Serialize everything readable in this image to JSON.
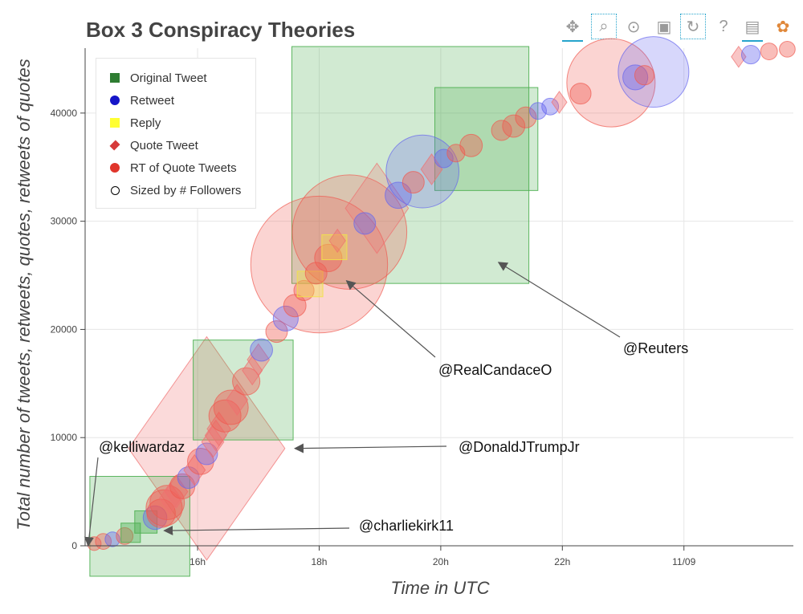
{
  "toolbar": {
    "tools": [
      {
        "name": "pan-tool",
        "glyph": "✥"
      },
      {
        "name": "box-zoom-tool",
        "glyph": "⌕"
      },
      {
        "name": "wheel-zoom-tool",
        "glyph": "⊙"
      },
      {
        "name": "save-tool",
        "glyph": "▣"
      },
      {
        "name": "reset-tool",
        "glyph": "↻"
      },
      {
        "name": "help-tool",
        "glyph": "?"
      },
      {
        "name": "hover-tool",
        "glyph": "▤"
      },
      {
        "name": "bokeh-logo",
        "glyph": "✿"
      }
    ]
  },
  "chart_data": {
    "type": "scatter",
    "title": "Box 3 Conspiracy Theories",
    "xlabel": "Time in UTC",
    "ylabel": "Total number of tweets, retweets, quotes, retweets of quotes",
    "xlim": [
      14.15,
      25.8
    ],
    "ylim": [
      0,
      46000
    ],
    "x_ticks": [
      16,
      18,
      20,
      22,
      24
    ],
    "x_tick_labels": [
      "16h",
      "18h",
      "20h",
      "22h",
      "11/09"
    ],
    "y_ticks": [
      0,
      10000,
      20000,
      30000,
      40000
    ],
    "y_tick_labels": [
      "0",
      "10000",
      "20000",
      "30000",
      "40000"
    ],
    "grid": true,
    "legend": [
      {
        "label": "Original Tweet",
        "marker": "square",
        "color": "#2e7d32"
      },
      {
        "label": "Retweet",
        "marker": "circle",
        "color": "#1515c8"
      },
      {
        "label": "Reply",
        "marker": "square",
        "color": "#ffff33"
      },
      {
        "label": "Quote Tweet",
        "marker": "diamond",
        "color": "#d63a3a"
      },
      {
        "label": "RT of Quote Tweets",
        "marker": "circle",
        "color": "#e0352b"
      },
      {
        "label": "Sized by # Followers",
        "marker": "circle-outline",
        "color": "#000000"
      }
    ],
    "series_colors": {
      "original": "#4caf50",
      "retweet": "#6666ee",
      "reply": "#f2e24a",
      "quote": "#ef6f6f",
      "rt_quote": "#ef5a50"
    },
    "large_points": [
      {
        "kind": "original",
        "x": 19.5,
        "y": 35200,
        "size": 18000,
        "label": "@Reuters"
      },
      {
        "kind": "rt_quote",
        "x": 18.0,
        "y": 26000,
        "size": 6000,
        "label": "@RealCandaceO"
      },
      {
        "kind": "quote",
        "x": 16.15,
        "y": 9000,
        "size": 16000,
        "label": "@DonaldJTrumpJr"
      },
      {
        "kind": "original",
        "x": 15.05,
        "y": 1800,
        "size": 3200,
        "label": "@charliekirk11"
      },
      {
        "kind": "rt_quote",
        "x": 18.5,
        "y": 29000,
        "size": 4200
      },
      {
        "kind": "original",
        "x": 16.75,
        "y": 14400,
        "size": 3200
      },
      {
        "kind": "original",
        "x": 20.75,
        "y": 37600,
        "size": 3400
      },
      {
        "kind": "rt_quote",
        "x": 22.8,
        "y": 42800,
        "size": 2500
      },
      {
        "kind": "retweet",
        "x": 23.5,
        "y": 43800,
        "size": 1600
      },
      {
        "kind": "quote",
        "x": 18.95,
        "y": 31200,
        "size": 2600
      },
      {
        "kind": "retweet",
        "x": 19.7,
        "y": 34600,
        "size": 1700
      }
    ],
    "small_points": [
      [
        14.3,
        200,
        "rt_quote",
        60
      ],
      [
        14.45,
        400,
        "rt_quote",
        80
      ],
      [
        14.6,
        600,
        "retweet",
        70
      ],
      [
        14.8,
        900,
        "rt_quote",
        90
      ],
      [
        14.9,
        1200,
        "original",
        120
      ],
      [
        15.15,
        2200,
        "original",
        160
      ],
      [
        15.3,
        2600,
        "retweet",
        180
      ],
      [
        15.4,
        3000,
        "rt_quote",
        260
      ],
      [
        15.45,
        3500,
        "rt_quote",
        420
      ],
      [
        15.5,
        4000,
        "rt_quote",
        380
      ],
      [
        15.55,
        4400,
        "quote",
        300
      ],
      [
        15.65,
        5000,
        "quote",
        340
      ],
      [
        15.75,
        5500,
        "rt_quote",
        200
      ],
      [
        15.85,
        6300,
        "retweet",
        150
      ],
      [
        15.95,
        7000,
        "quote",
        300
      ],
      [
        16.05,
        7800,
        "rt_quote",
        220
      ],
      [
        16.15,
        8500,
        "retweet",
        150
      ],
      [
        16.25,
        9600,
        "quote",
        320
      ],
      [
        16.3,
        10200,
        "quote",
        300
      ],
      [
        16.35,
        10800,
        "quote",
        360
      ],
      [
        16.45,
        12000,
        "rt_quote",
        330
      ],
      [
        16.55,
        12800,
        "rt_quote",
        380
      ],
      [
        16.65,
        13500,
        "quote",
        300
      ],
      [
        16.8,
        15200,
        "rt_quote",
        240
      ],
      [
        16.9,
        16200,
        "quote",
        260
      ],
      [
        17.0,
        17200,
        "quote",
        320
      ],
      [
        17.05,
        18100,
        "retweet",
        160
      ],
      [
        17.3,
        19800,
        "rt_quote",
        150
      ],
      [
        17.45,
        21000,
        "retweet",
        200
      ],
      [
        17.6,
        22200,
        "rt_quote",
        160
      ],
      [
        17.75,
        23600,
        "rt_quote",
        130
      ],
      [
        17.85,
        24200,
        "reply",
        210
      ],
      [
        17.95,
        25200,
        "rt_quote",
        150
      ],
      [
        18.15,
        26600,
        "rt_quote",
        240
      ],
      [
        18.25,
        27600,
        "reply",
        200
      ],
      [
        18.3,
        28200,
        "quote",
        170
      ],
      [
        18.75,
        29800,
        "retweet",
        150
      ],
      [
        19.3,
        32400,
        "retweet",
        220
      ],
      [
        19.55,
        33600,
        "rt_quote",
        150
      ],
      [
        19.85,
        34800,
        "quote",
        300
      ],
      [
        20.05,
        35800,
        "retweet",
        110
      ],
      [
        20.25,
        36300,
        "rt_quote",
        100
      ],
      [
        20.5,
        37000,
        "rt_quote",
        160
      ],
      [
        21.0,
        38400,
        "rt_quote",
        130
      ],
      [
        21.2,
        38800,
        "rt_quote",
        160
      ],
      [
        21.4,
        39600,
        "rt_quote",
        140
      ],
      [
        21.6,
        40200,
        "retweet",
        90
      ],
      [
        21.8,
        40600,
        "retweet",
        90
      ],
      [
        21.95,
        41000,
        "quote",
        150
      ],
      [
        22.3,
        41800,
        "rt_quote",
        140
      ],
      [
        23.2,
        43300,
        "retweet",
        200
      ],
      [
        23.35,
        43500,
        "rt_quote",
        120
      ],
      [
        24.9,
        45200,
        "quote",
        140
      ],
      [
        25.1,
        45400,
        "retweet",
        110
      ],
      [
        25.4,
        45700,
        "rt_quote",
        90
      ],
      [
        25.7,
        45900,
        "rt_quote",
        80
      ]
    ],
    "annotations": [
      {
        "text": "@Reuters",
        "arrow_to": [
          20.95,
          26200
        ]
      },
      {
        "text": "@RealCandaceO",
        "arrow_to": [
          18.45,
          24500
        ]
      },
      {
        "text": "@DonaldJTrumpJr",
        "arrow_to": [
          17.6,
          9000
        ]
      },
      {
        "text": "@charliekirk11",
        "arrow_to": [
          15.45,
          1400
        ]
      },
      {
        "text": "@kelliwardaz",
        "arrow_to": [
          14.2,
          0
        ]
      }
    ]
  }
}
